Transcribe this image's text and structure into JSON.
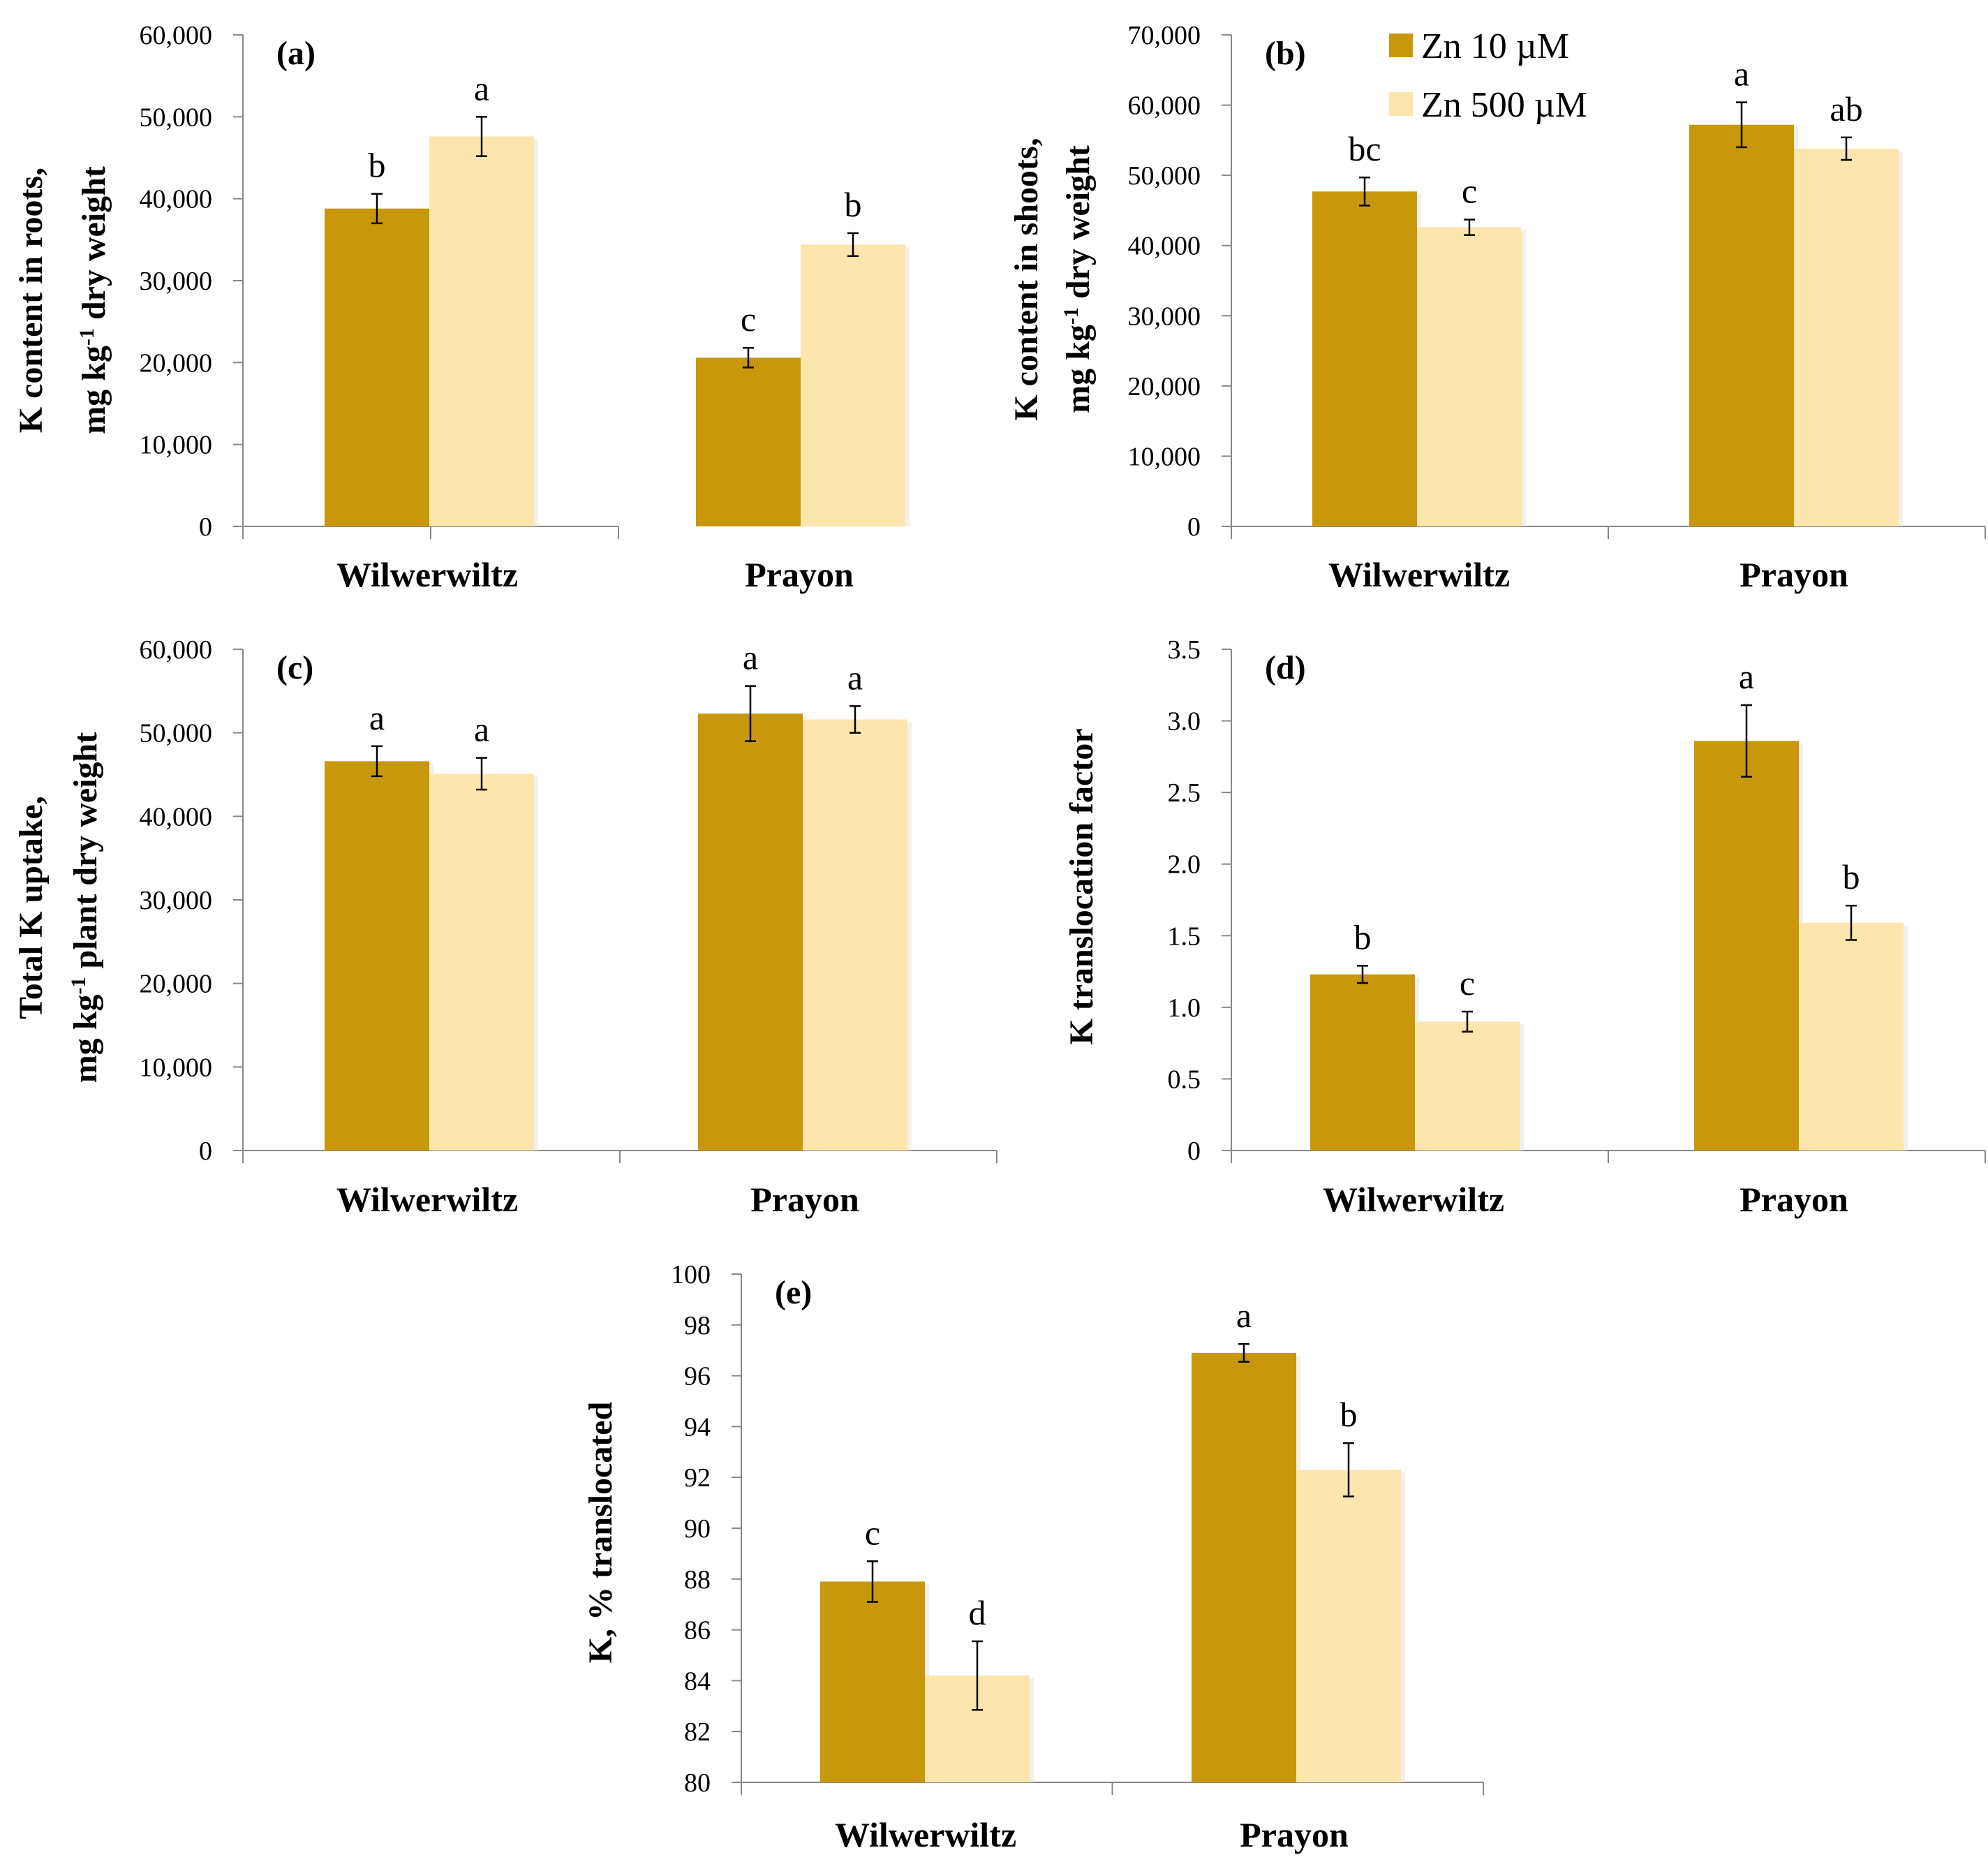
{
  "legend": [
    {
      "label": "Zn 10 µM",
      "color": "#c8970b"
    },
    {
      "label": "Zn 500 µM",
      "color": "#fde5ae"
    }
  ],
  "chart_data": [
    {
      "type": "bar",
      "panel": "(a)",
      "ylabel_lines": [
        "K content in roots,",
        "mg kg",
        "-1",
        " dry weight"
      ],
      "ylim": [
        0,
        60000
      ],
      "yticks": [
        0,
        10000,
        20000,
        30000,
        40000,
        50000,
        60000
      ],
      "ytick_labels": [
        "0",
        "10,000",
        "20,000",
        "30,000",
        "40,000",
        "50,000",
        "60,000"
      ],
      "categories": [
        "Wilwerwiltz",
        "Prayon"
      ],
      "series": [
        {
          "name": "Zn 10 µM",
          "values": [
            38800,
            20600
          ],
          "errors": [
            1800,
            1200
          ],
          "letters": [
            "b",
            "c"
          ]
        },
        {
          "name": "Zn 500 µM",
          "values": [
            47600,
            34400
          ],
          "errors": [
            2400,
            1400
          ],
          "letters": [
            "a",
            "b"
          ]
        }
      ]
    },
    {
      "type": "bar",
      "panel": "(b)",
      "ylabel_lines": [
        "K content in shoots,",
        "mg kg",
        "-1",
        " dry weight"
      ],
      "ylim": [
        0,
        70000
      ],
      "yticks": [
        0,
        10000,
        20000,
        30000,
        40000,
        50000,
        60000,
        70000
      ],
      "ytick_labels": [
        "0",
        "10,000",
        "20,000",
        "30,000",
        "40,000",
        "50,000",
        "60,000",
        "70,000"
      ],
      "categories": [
        "Wilwerwiltz",
        "Prayon"
      ],
      "series": [
        {
          "name": "Zn 10 µM",
          "values": [
            47700,
            57200
          ],
          "errors": [
            2000,
            3200
          ],
          "letters": [
            "bc",
            "a"
          ]
        },
        {
          "name": "Zn 500 µM",
          "values": [
            42600,
            53800
          ],
          "errors": [
            1100,
            1600
          ],
          "letters": [
            "c",
            "ab"
          ]
        }
      ]
    },
    {
      "type": "bar",
      "panel": "(c)",
      "ylabel_lines": [
        "Total K uptake,",
        "mg kg",
        "-1",
        " plant dry weight"
      ],
      "ylim": [
        0,
        60000
      ],
      "yticks": [
        0,
        10000,
        20000,
        30000,
        40000,
        50000,
        60000
      ],
      "ytick_labels": [
        "0",
        "10,000",
        "20,000",
        "30,000",
        "40,000",
        "50,000",
        "60,000"
      ],
      "categories": [
        "Wilwerwiltz",
        "Prayon"
      ],
      "series": [
        {
          "name": "Zn 10 µM",
          "values": [
            46600,
            52300
          ],
          "errors": [
            1800,
            3300
          ],
          "letters": [
            "a",
            "a"
          ]
        },
        {
          "name": "Zn 500 µM",
          "values": [
            45100,
            51600
          ],
          "errors": [
            1900,
            1600
          ],
          "letters": [
            "a",
            "a"
          ]
        }
      ]
    },
    {
      "type": "bar",
      "panel": "(d)",
      "ylabel_lines": [
        "K translocation factor"
      ],
      "ylim": [
        0,
        3.5
      ],
      "yticks": [
        0,
        0.5,
        1.0,
        1.5,
        2.0,
        2.5,
        3.0,
        3.5
      ],
      "ytick_labels": [
        "0",
        "0.5",
        "1.0",
        "1.5",
        "2.0",
        "2.5",
        "3.0",
        "3.5"
      ],
      "categories": [
        "Wilwerwiltz",
        "Prayon"
      ],
      "series": [
        {
          "name": "Zn 10 µM",
          "values": [
            1.23,
            2.86
          ],
          "errors": [
            0.06,
            0.25
          ],
          "letters": [
            "b",
            "a"
          ]
        },
        {
          "name": "Zn 500 µM",
          "values": [
            0.9,
            1.59
          ],
          "errors": [
            0.07,
            0.12
          ],
          "letters": [
            "c",
            "b"
          ]
        }
      ]
    },
    {
      "type": "bar",
      "panel": "(e)",
      "ylabel_lines": [
        "K, % translocated"
      ],
      "ylim": [
        80,
        100
      ],
      "yticks": [
        80,
        82,
        84,
        86,
        88,
        90,
        92,
        94,
        96,
        98,
        100
      ],
      "ytick_labels": [
        "80",
        "82",
        "84",
        "86",
        "88",
        "90",
        "92",
        "94",
        "96",
        "98",
        "100"
      ],
      "categories": [
        "Wilwerwiltz",
        "Prayon"
      ],
      "series": [
        {
          "name": "Zn 10 µM",
          "values": [
            87.9,
            96.9
          ],
          "errors": [
            0.8,
            0.35
          ],
          "letters": [
            "c",
            "a"
          ]
        },
        {
          "name": "Zn 500 µM",
          "values": [
            84.2,
            92.3
          ],
          "errors": [
            1.35,
            1.05
          ],
          "letters": [
            "d",
            "b"
          ]
        }
      ]
    }
  ]
}
